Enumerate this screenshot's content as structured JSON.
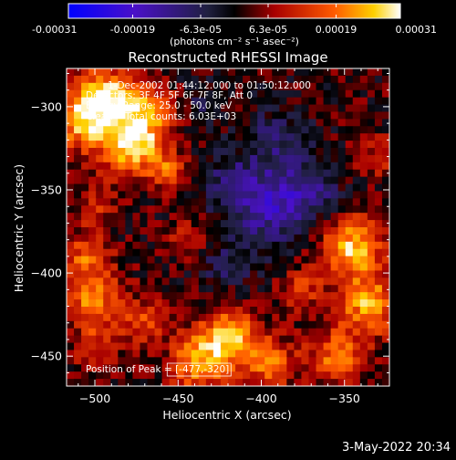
{
  "chart_data": {
    "type": "heatmap",
    "title": "Reconstructed RHESSI Image",
    "xlabel": "Heliocentric X (arcsec)",
    "ylabel": "Heliocentric Y (arcsec)",
    "xlim": [
      -517,
      -323
    ],
    "ylim": [
      -468,
      -277
    ],
    "xticks": [
      -500,
      -450,
      -400,
      -350
    ],
    "yticks": [
      -450,
      -400,
      -350,
      -300
    ],
    "colorbar": {
      "min": -0.00031,
      "max": 0.00031,
      "ticks": [
        "-0.00031",
        "-0.00019",
        "-6.3e-05",
        "6.3e-05",
        "0.00019",
        "0.00031"
      ],
      "units": "(photons cm⁻² s⁻¹ asec⁻²)"
    },
    "annotations": {
      "time_range": "1-Dec-2002 01:44:12.000 to 01:50:12.000",
      "detectors": "Detectors: 3F 4F 5F 6F 7F 8F, Att 0",
      "energy": "Energy Range: 25.0 - 50.0 keV",
      "clean": "Clean    Total counts: 6.03E+03",
      "peak": "Position of Peak = [-477,-320]"
    },
    "sources": [
      {
        "x": -477,
        "y": -320,
        "amp": 1.0,
        "sigma": 14
      },
      {
        "x": -508,
        "y": -308,
        "amp": 0.75,
        "sigma": 12
      },
      {
        "x": -495,
        "y": -292,
        "amp": 0.7,
        "sigma": 11
      },
      {
        "x": -475,
        "y": -296,
        "amp": 0.45,
        "sigma": 9
      },
      {
        "x": -455,
        "y": -340,
        "amp": 0.4,
        "sigma": 8
      },
      {
        "x": -345,
        "y": -385,
        "amp": 0.8,
        "sigma": 13
      },
      {
        "x": -335,
        "y": -420,
        "amp": 0.7,
        "sigma": 12
      },
      {
        "x": -355,
        "y": -450,
        "amp": 0.55,
        "sigma": 12
      },
      {
        "x": -420,
        "y": -440,
        "amp": 0.8,
        "sigma": 13
      },
      {
        "x": -440,
        "y": -455,
        "amp": 0.6,
        "sigma": 11
      },
      {
        "x": -395,
        "y": -455,
        "amp": 0.5,
        "sigma": 11
      },
      {
        "x": -500,
        "y": -415,
        "amp": 0.6,
        "sigma": 12
      },
      {
        "x": -505,
        "y": -390,
        "amp": 0.45,
        "sigma": 10
      },
      {
        "x": -470,
        "y": -430,
        "amp": 0.4,
        "sigma": 10
      },
      {
        "x": -500,
        "y": -445,
        "amp": 0.35,
        "sigma": 10
      },
      {
        "x": -500,
        "y": -360,
        "amp": 0.3,
        "sigma": 9
      },
      {
        "x": -445,
        "y": -380,
        "amp": 0.3,
        "sigma": 8
      },
      {
        "x": -375,
        "y": -410,
        "amp": 0.35,
        "sigma": 9
      },
      {
        "x": -330,
        "y": -330,
        "amp": 0.3,
        "sigma": 9
      },
      {
        "x": -455,
        "y": -300,
        "amp": 0.3,
        "sigma": 8
      },
      {
        "x": -395,
        "y": -360,
        "amp": -0.55,
        "sigma": 16
      },
      {
        "x": -370,
        "y": -350,
        "amp": -0.35,
        "sigma": 12
      },
      {
        "x": -420,
        "y": -345,
        "amp": -0.3,
        "sigma": 12
      },
      {
        "x": -390,
        "y": -320,
        "amp": -0.3,
        "sigma": 14
      },
      {
        "x": -420,
        "y": -395,
        "amp": -0.25,
        "sigma": 12
      },
      {
        "x": -440,
        "y": -300,
        "amp": -0.2,
        "sigma": 10
      }
    ]
  },
  "footer": {
    "date": "3-May-2022 20:34"
  }
}
